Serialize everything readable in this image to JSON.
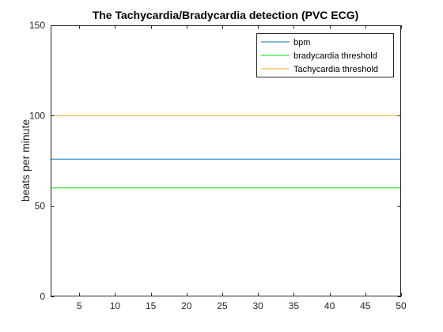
{
  "chart_data": {
    "type": "line",
    "title": "The Tachycardia/Bradycardia detection (PVC ECG)",
    "xlabel": "",
    "ylabel": "beats per minute",
    "xlim": [
      1,
      50
    ],
    "ylim": [
      0,
      150
    ],
    "xticks": [
      5,
      10,
      15,
      20,
      25,
      30,
      35,
      40,
      45,
      50
    ],
    "yticks": [
      0,
      50,
      100,
      150
    ],
    "grid": false,
    "legend_position": "top-right",
    "series": [
      {
        "name": "bpm",
        "color": "#0072BD",
        "x": [
          1,
          50
        ],
        "values": [
          76,
          76
        ]
      },
      {
        "name": "bradycardia threshold",
        "color": "#00E000",
        "x": [
          1,
          50
        ],
        "values": [
          60,
          60
        ]
      },
      {
        "name": "Tachycardia threshold",
        "color": "#EDB120",
        "x": [
          1,
          50
        ],
        "values": [
          100,
          100
        ]
      }
    ]
  }
}
